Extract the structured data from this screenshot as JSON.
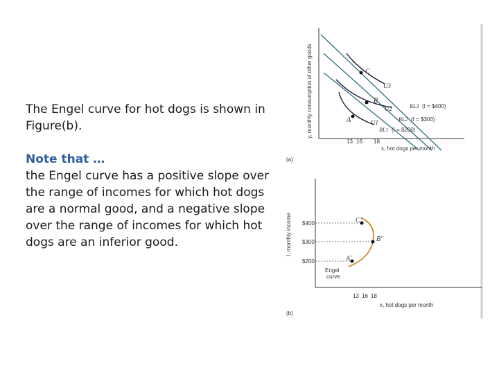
{
  "slide": {
    "intro_text": "The Engel curve for hot dogs is shown in Figure(b).",
    "note_heading": "Note that …",
    "note_body": "the Engel curve has a positive slope over the range of incomes for which hot dogs are a normal good, and a negative slope over the range of incomes for which hot dogs are an inferior good."
  },
  "figure_a": {
    "panel_label": "(a)",
    "y_axis_label": "y, monthly consumption of other goods",
    "x_axis_label": "x, hot dogs per month",
    "x_ticks": [
      "13",
      "16",
      "18"
    ],
    "points": [
      "A",
      "B",
      "C"
    ],
    "indifference_curves": [
      "U1",
      "U2",
      "U3"
    ],
    "budget_lines": [
      {
        "label": "BL1",
        "income": "(I = $200)"
      },
      {
        "label": "BL2",
        "income": "(I = $300)"
      },
      {
        "label": "BL3",
        "income": "(I = $400)"
      }
    ]
  },
  "figure_b": {
    "panel_label": "(b)",
    "y_axis_label": "I, monthly income",
    "x_axis_label": "x, hot dogs per month",
    "x_ticks": [
      "13",
      "16",
      "18"
    ],
    "y_ticks": [
      "$400",
      "$300",
      "$200"
    ],
    "points": [
      "A'",
      "B'",
      "C'"
    ],
    "curve_label_line1": "Engel",
    "curve_label_line2": "curve",
    "curve_color": "#c98a2a"
  }
}
